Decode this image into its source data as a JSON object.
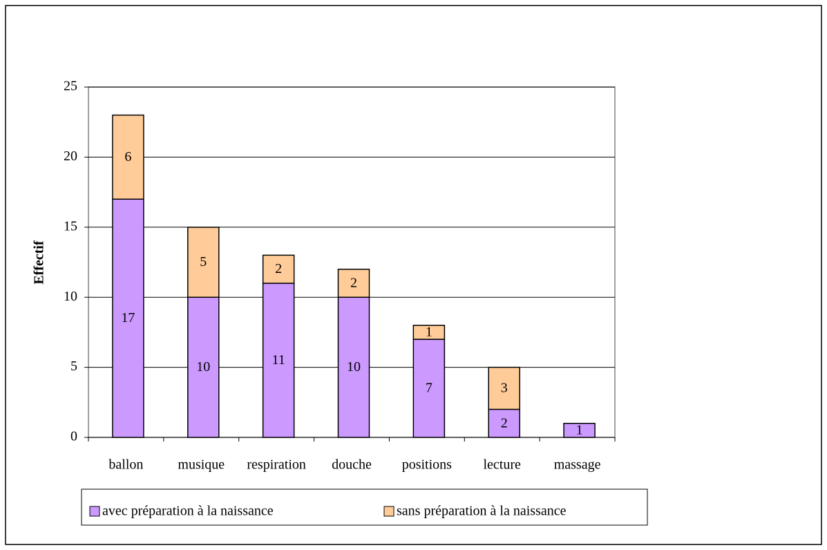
{
  "chart_data": {
    "type": "stacked_bar",
    "categories": [
      "ballon",
      "musique",
      "respiration",
      "douche",
      "positions",
      "lecture",
      "massage"
    ],
    "series": [
      {
        "name": "avec préparation à la naissance",
        "color": "#cc99ff",
        "values": [
          17,
          10,
          11,
          10,
          7,
          2,
          1
        ]
      },
      {
        "name": "sans préparation à la naissance",
        "color": "#ffcc99",
        "values": [
          6,
          5,
          2,
          2,
          1,
          3,
          null
        ]
      }
    ],
    "y_label": "Effectif",
    "ylim": [
      0,
      25
    ],
    "yticks": [
      0,
      5,
      10,
      15,
      20,
      25
    ],
    "grid": true,
    "legend": "bottom"
  }
}
